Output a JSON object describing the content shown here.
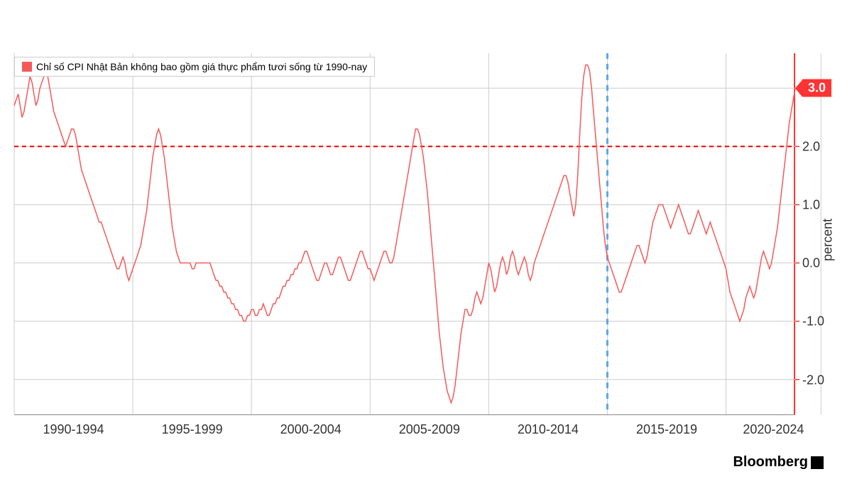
{
  "chart": {
    "type": "line",
    "legend_label": "Chỉ số CPI Nhật Bản không bao gồm giá thực phẩm tươi sống từ 1990-nay",
    "source": "Bloomberg",
    "line_color": "#f55a5a",
    "line_width": 1.5,
    "background_color": "#ffffff",
    "grid_color": "#cccccc",
    "reference_line": {
      "value": 2.0,
      "color": "#e60000",
      "dash": "6,5"
    },
    "vertical_marker": {
      "x_index": 300,
      "color": "#5aa8e6",
      "dash": "8,7"
    },
    "y_axis": {
      "title": "percent",
      "min": -2.6,
      "max": 3.6,
      "ticks": [
        -2.0,
        -1.0,
        0.0,
        1.0,
        2.0,
        3.0
      ],
      "tick_labels": [
        "-2.0",
        "-1.0",
        "0.0",
        "1.0",
        "2.0",
        "3.0"
      ],
      "axis_color": "#ff3333",
      "label_fontsize": 18
    },
    "x_axis": {
      "tick_positions": [
        0,
        60,
        120,
        180,
        240,
        300,
        360,
        408
      ],
      "group_labels": [
        "1990-1994",
        "1995-1999",
        "2000-2004",
        "2005-2009",
        "2010-2014",
        "2015-2019",
        "2020-2024"
      ],
      "group_positions": [
        30,
        90,
        150,
        210,
        270,
        330,
        384
      ],
      "label_fontsize": 18
    },
    "current_value": {
      "value": 3.0,
      "label": "3.0",
      "color": "#ff3333"
    },
    "series": [
      2.7,
      2.8,
      2.9,
      2.7,
      2.5,
      2.6,
      2.8,
      3.0,
      3.2,
      3.1,
      2.9,
      2.7,
      2.8,
      3.0,
      3.1,
      3.2,
      3.3,
      3.2,
      3.0,
      2.8,
      2.6,
      2.5,
      2.4,
      2.3,
      2.2,
      2.1,
      2.0,
      2.1,
      2.2,
      2.3,
      2.3,
      2.2,
      2.0,
      1.8,
      1.6,
      1.5,
      1.4,
      1.3,
      1.2,
      1.1,
      1.0,
      0.9,
      0.8,
      0.7,
      0.7,
      0.6,
      0.5,
      0.4,
      0.3,
      0.2,
      0.1,
      0.0,
      -0.1,
      -0.1,
      0.0,
      0.1,
      0.0,
      -0.2,
      -0.3,
      -0.2,
      -0.1,
      0.0,
      0.1,
      0.2,
      0.3,
      0.5,
      0.7,
      0.9,
      1.2,
      1.5,
      1.8,
      2.0,
      2.2,
      2.3,
      2.2,
      2.0,
      1.8,
      1.5,
      1.2,
      0.9,
      0.6,
      0.4,
      0.2,
      0.1,
      0.0,
      0.0,
      0.0,
      0.0,
      0.0,
      0.0,
      -0.1,
      -0.1,
      0.0,
      0.0,
      0.0,
      0.0,
      0.0,
      0.0,
      0.0,
      0.0,
      -0.1,
      -0.2,
      -0.3,
      -0.3,
      -0.4,
      -0.4,
      -0.5,
      -0.5,
      -0.6,
      -0.6,
      -0.7,
      -0.7,
      -0.8,
      -0.8,
      -0.9,
      -0.9,
      -1.0,
      -1.0,
      -0.9,
      -0.9,
      -0.8,
      -0.8,
      -0.9,
      -0.9,
      -0.8,
      -0.8,
      -0.7,
      -0.8,
      -0.9,
      -0.9,
      -0.8,
      -0.7,
      -0.7,
      -0.6,
      -0.6,
      -0.5,
      -0.4,
      -0.4,
      -0.3,
      -0.3,
      -0.2,
      -0.2,
      -0.1,
      -0.1,
      0.0,
      0.0,
      0.1,
      0.2,
      0.2,
      0.1,
      0.0,
      -0.1,
      -0.2,
      -0.3,
      -0.3,
      -0.2,
      -0.1,
      0.0,
      0.0,
      -0.1,
      -0.2,
      -0.2,
      -0.1,
      0.0,
      0.1,
      0.1,
      0.0,
      -0.1,
      -0.2,
      -0.3,
      -0.3,
      -0.2,
      -0.1,
      0.0,
      0.1,
      0.2,
      0.2,
      0.1,
      0.0,
      -0.1,
      -0.1,
      -0.2,
      -0.3,
      -0.2,
      -0.1,
      0.0,
      0.1,
      0.2,
      0.2,
      0.1,
      0.0,
      0.0,
      0.1,
      0.3,
      0.5,
      0.7,
      0.9,
      1.1,
      1.3,
      1.5,
      1.7,
      1.9,
      2.1,
      2.3,
      2.3,
      2.2,
      2.0,
      1.8,
      1.5,
      1.2,
      0.8,
      0.4,
      0.0,
      -0.4,
      -0.8,
      -1.2,
      -1.5,
      -1.8,
      -2.0,
      -2.2,
      -2.3,
      -2.4,
      -2.3,
      -2.1,
      -1.8,
      -1.5,
      -1.2,
      -1.0,
      -0.8,
      -0.8,
      -0.9,
      -0.9,
      -0.8,
      -0.6,
      -0.5,
      -0.6,
      -0.7,
      -0.6,
      -0.4,
      -0.2,
      0.0,
      -0.1,
      -0.3,
      -0.5,
      -0.4,
      -0.2,
      0.0,
      0.1,
      0.0,
      -0.2,
      -0.1,
      0.1,
      0.2,
      0.1,
      -0.1,
      -0.2,
      -0.1,
      0.0,
      0.1,
      0.0,
      -0.2,
      -0.3,
      -0.2,
      0.0,
      0.1,
      0.2,
      0.3,
      0.4,
      0.5,
      0.6,
      0.7,
      0.8,
      0.9,
      1.0,
      1.1,
      1.2,
      1.3,
      1.4,
      1.5,
      1.5,
      1.4,
      1.2,
      1.0,
      0.8,
      1.0,
      1.5,
      2.2,
      2.8,
      3.2,
      3.4,
      3.4,
      3.3,
      3.0,
      2.6,
      2.2,
      1.8,
      1.4,
      1.0,
      0.6,
      0.3,
      0.1,
      0.0,
      -0.1,
      -0.2,
      -0.3,
      -0.4,
      -0.5,
      -0.5,
      -0.4,
      -0.3,
      -0.2,
      -0.1,
      0.0,
      0.1,
      0.2,
      0.3,
      0.3,
      0.2,
      0.1,
      0.0,
      0.1,
      0.3,
      0.5,
      0.7,
      0.8,
      0.9,
      1.0,
      1.0,
      1.0,
      0.9,
      0.8,
      0.7,
      0.6,
      0.7,
      0.8,
      0.9,
      1.0,
      0.9,
      0.8,
      0.7,
      0.6,
      0.5,
      0.5,
      0.6,
      0.7,
      0.8,
      0.9,
      0.8,
      0.7,
      0.6,
      0.5,
      0.6,
      0.7,
      0.6,
      0.5,
      0.4,
      0.3,
      0.2,
      0.1,
      0.0,
      -0.1,
      -0.3,
      -0.5,
      -0.6,
      -0.7,
      -0.8,
      -0.9,
      -1.0,
      -0.9,
      -0.8,
      -0.6,
      -0.5,
      -0.4,
      -0.5,
      -0.6,
      -0.5,
      -0.3,
      -0.1,
      0.1,
      0.2,
      0.1,
      0.0,
      -0.1,
      0.0,
      0.2,
      0.4,
      0.6,
      0.9,
      1.2,
      1.5,
      1.8,
      2.1,
      2.4,
      2.6,
      2.8,
      3.0
    ]
  }
}
